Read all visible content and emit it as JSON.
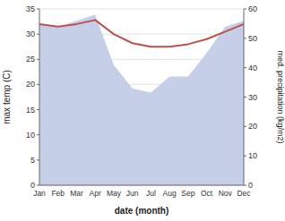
{
  "chart_data": {
    "type": "line",
    "categories": [
      "Jan",
      "Feb",
      "Mar",
      "Apr",
      "May",
      "Jun",
      "Jul",
      "Aug",
      "Sep",
      "Oct",
      "Nov",
      "Dec"
    ],
    "series": [
      {
        "type": "area",
        "axis": "y2",
        "color": "#c5cfe8",
        "values": [
          55.0,
          54.0,
          56.0,
          58.0,
          41.0,
          33.0,
          31.5,
          37.0,
          37.0,
          45.0,
          54.0,
          56.0
        ]
      },
      {
        "type": "line",
        "color": "#c0504d",
        "values": [
          32.0,
          31.5,
          32.0,
          32.8,
          30.0,
          28.2,
          27.5,
          27.5,
          28.0,
          29.0,
          30.5,
          32.0
        ]
      }
    ],
    "xlabel": "date (month)",
    "ylabel": "max temp (C)",
    "y2label": "med. precipitation (kg/m2)",
    "ylim": [
      0,
      35
    ],
    "yticks": [
      0,
      5,
      10,
      15,
      20,
      25,
      30,
      35
    ],
    "y2lim": [
      0,
      60
    ],
    "y2ticks": [
      0,
      10,
      20,
      30,
      40,
      50,
      60
    ],
    "grid": true
  }
}
